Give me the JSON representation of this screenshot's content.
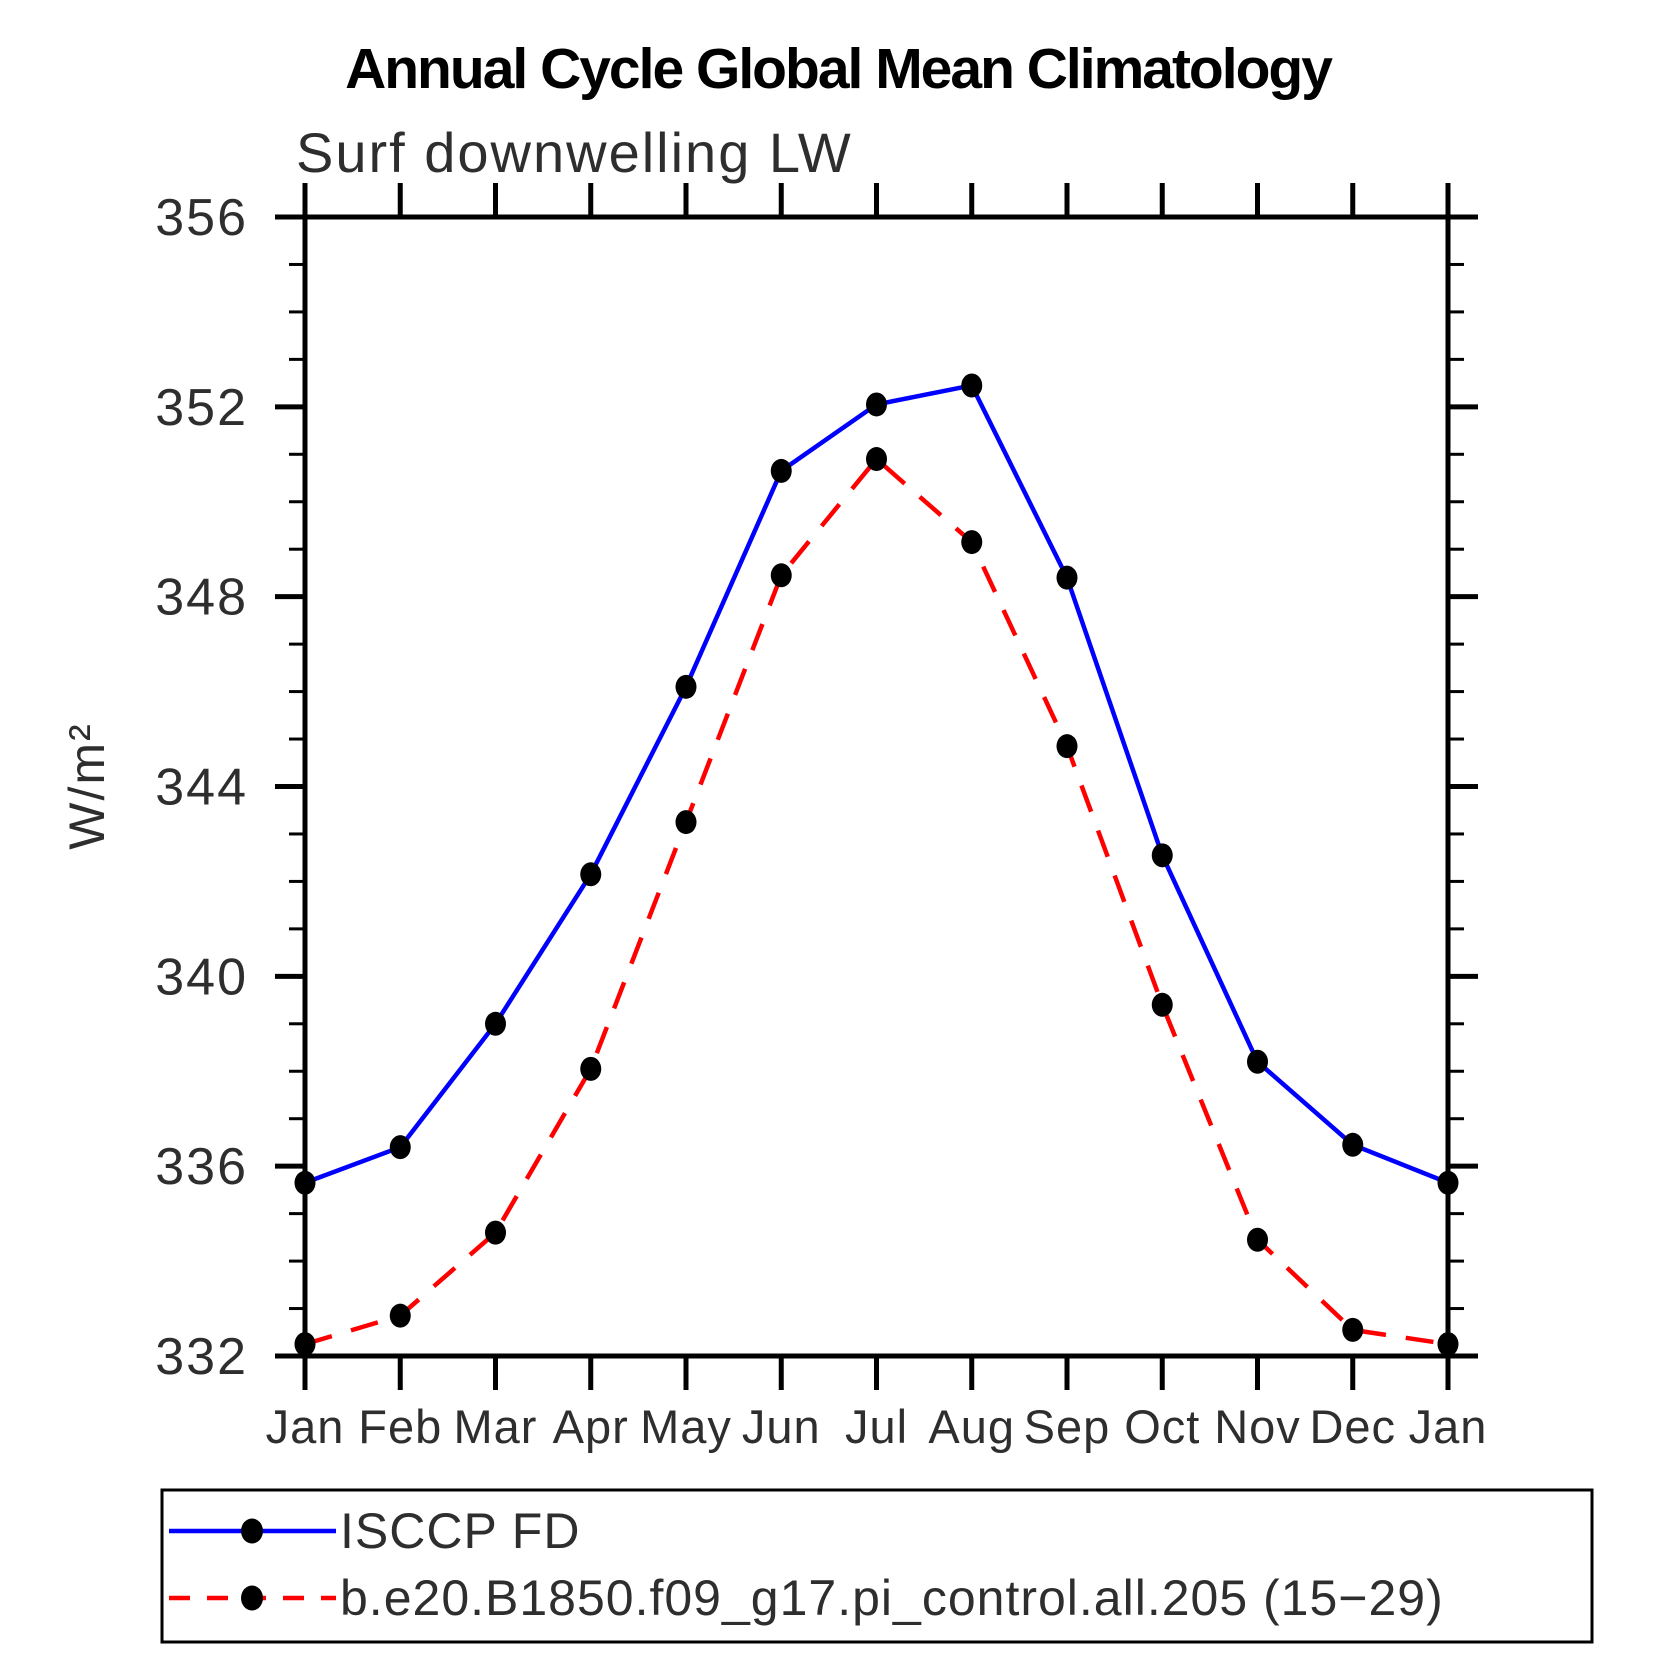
{
  "page": {
    "title": "Annual Cycle Global Mean Climatology"
  },
  "chart_data": {
    "type": "line",
    "title": "Annual Cycle Global Mean Climatology",
    "subtitle": "Surf downwelling LW",
    "ylabel": "W/m²",
    "xlabel": "",
    "categories": [
      "Jan",
      "Feb",
      "Mar",
      "Apr",
      "May",
      "Jun",
      "Jul",
      "Aug",
      "Sep",
      "Oct",
      "Nov",
      "Dec",
      "Jan"
    ],
    "ylim": [
      332,
      356
    ],
    "y_major_ticks": [
      332,
      336,
      340,
      344,
      348,
      352,
      356
    ],
    "y_minor_step": 1,
    "grid": false,
    "legend_position": "bottom-left-box",
    "marker": {
      "shape": "filled-circle",
      "color": "#000000"
    },
    "series": [
      {
        "name": "ISCCP FD",
        "color": "#0000ff",
        "line_style": "solid",
        "values": [
          335.65,
          336.4,
          339.0,
          342.15,
          346.1,
          350.65,
          352.05,
          352.45,
          348.4,
          342.55,
          338.2,
          336.45,
          335.65
        ]
      },
      {
        "name": "b.e20.B1850.f09_g17.pi_control.all.205 (15−29)",
        "color": "#ff0000",
        "line_style": "dashed",
        "values": [
          332.25,
          332.85,
          334.6,
          338.05,
          343.25,
          348.45,
          350.9,
          349.15,
          344.85,
          339.4,
          334.45,
          332.55,
          332.25
        ]
      }
    ]
  }
}
